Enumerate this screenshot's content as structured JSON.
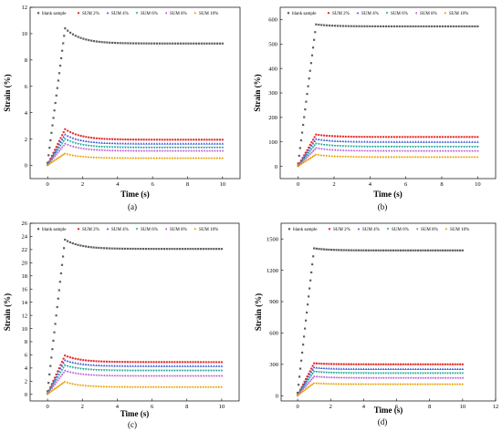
{
  "figure": {
    "panel_labels": [
      "(a)",
      "(b)",
      "(c)",
      "(d)"
    ]
  },
  "legend": [
    "blank sample",
    "SUM 2%",
    "SUM 4%",
    "SUM 6%",
    "SUM 8%",
    "SUM 10%"
  ],
  "colors": [
    "#606060",
    "#e83030",
    "#3a56d4",
    "#18a890",
    "#c060d8",
    "#e8a000"
  ],
  "chart_data": [
    {
      "type": "scatter",
      "panel": "(a)",
      "xlabel": "Time (s)",
      "ylabel": "Strain (%)",
      "xlim": [
        -1,
        11
      ],
      "ylim": [
        -1,
        12
      ],
      "xticks": [
        0,
        2,
        4,
        6,
        8,
        10
      ],
      "yticks": [
        0,
        2,
        4,
        6,
        8,
        10,
        12
      ],
      "legend_position": "top",
      "series": [
        {
          "name": "blank sample",
          "peak": 10.4,
          "final": 9.25
        },
        {
          "name": "SUM 2%",
          "peak": 2.75,
          "final": 1.95
        },
        {
          "name": "SUM 4%",
          "peak": 2.35,
          "final": 1.65
        },
        {
          "name": "SUM 6%",
          "peak": 2.0,
          "final": 1.35
        },
        {
          "name": "SUM 8%",
          "peak": 1.65,
          "final": 1.1
        },
        {
          "name": "SUM 10%",
          "peak": 0.9,
          "final": 0.55
        }
      ]
    },
    {
      "type": "scatter",
      "panel": "(b)",
      "xlabel": "Time (s)",
      "ylabel": "Strain (%)",
      "xlim": [
        -1,
        11
      ],
      "ylim": [
        -50,
        650
      ],
      "xticks": [
        0,
        2,
        4,
        6,
        8,
        10
      ],
      "yticks": [
        0,
        100,
        200,
        300,
        400,
        500,
        600
      ],
      "legend_position": "top",
      "series": [
        {
          "name": "blank sample",
          "peak": 580,
          "final": 572
        },
        {
          "name": "SUM 2%",
          "peak": 130,
          "final": 120
        },
        {
          "name": "SUM 4%",
          "peak": 112,
          "final": 100
        },
        {
          "name": "SUM 6%",
          "peak": 93,
          "final": 80
        },
        {
          "name": "SUM 8%",
          "peak": 75,
          "final": 63
        },
        {
          "name": "SUM 10%",
          "peak": 48,
          "final": 38
        }
      ]
    },
    {
      "type": "scatter",
      "panel": "(c)",
      "xlabel": "Time (s)",
      "ylabel": "Strain (%)",
      "xlim": [
        -1,
        11
      ],
      "ylim": [
        -1,
        26
      ],
      "xticks": [
        0,
        2,
        4,
        6,
        8,
        10
      ],
      "yticks": [
        0,
        2,
        4,
        6,
        8,
        10,
        12,
        14,
        16,
        18,
        20,
        22,
        24,
        26
      ],
      "legend_position": "top",
      "series": [
        {
          "name": "blank sample",
          "peak": 23.5,
          "final": 22.1
        },
        {
          "name": "SUM 2%",
          "peak": 5.9,
          "final": 4.9
        },
        {
          "name": "SUM 4%",
          "peak": 5.2,
          "final": 4.3
        },
        {
          "name": "SUM 6%",
          "peak": 4.4,
          "final": 3.6
        },
        {
          "name": "SUM 8%",
          "peak": 3.6,
          "final": 2.8
        },
        {
          "name": "SUM 10%",
          "peak": 1.9,
          "final": 1.1
        }
      ]
    },
    {
      "type": "scatter",
      "panel": "(d)",
      "xlabel": "Time (s)",
      "ylabel": "Strain (%)",
      "xlim": [
        -1,
        12
      ],
      "ylim": [
        -50,
        1650
      ],
      "xticks": [
        0,
        2,
        4,
        6,
        8,
        10,
        12
      ],
      "yticks": [
        0,
        300,
        600,
        900,
        1200,
        1500
      ],
      "legend_position": "top",
      "series": [
        {
          "name": "blank sample",
          "peak": 1410,
          "final": 1390
        },
        {
          "name": "SUM 2%",
          "peak": 310,
          "final": 300
        },
        {
          "name": "SUM 4%",
          "peak": 270,
          "final": 255
        },
        {
          "name": "SUM 6%",
          "peak": 230,
          "final": 215
        },
        {
          "name": "SUM 8%",
          "peak": 185,
          "final": 170
        },
        {
          "name": "SUM 10%",
          "peak": 120,
          "final": 110
        }
      ]
    }
  ]
}
